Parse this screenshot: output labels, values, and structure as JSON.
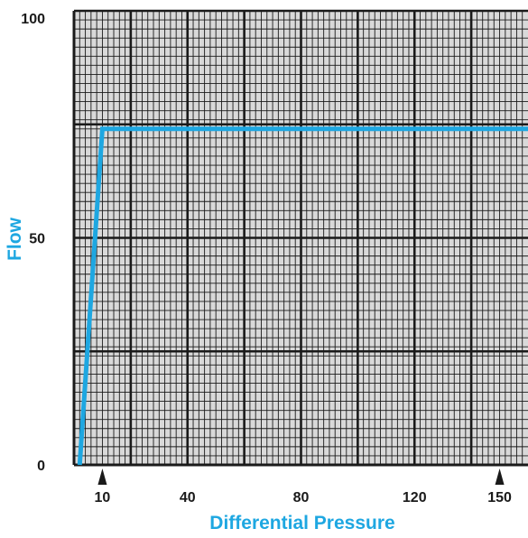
{
  "chart_data": {
    "type": "line",
    "title": "",
    "xlabel": "Differential Pressure",
    "ylabel": "Flow",
    "xlim": [
      0,
      160
    ],
    "ylim": [
      0,
      100
    ],
    "x_ticks": [
      10,
      40,
      80,
      120,
      150
    ],
    "x_tick_markers": [
      10,
      150
    ],
    "y_ticks": [
      0,
      50,
      100
    ],
    "grid": "major and minor",
    "series": [
      {
        "x": [
          2,
          10,
          160
        ],
        "y": [
          0,
          74,
          74
        ]
      }
    ]
  },
  "colors": {
    "series": "#1ea7e1",
    "axis_title": "#1ea7e1",
    "grid_background": "#d9d9d9",
    "minor_grid": "#1a1a1a",
    "major_grid": "#1a1a1a",
    "text": "#1a1a1a"
  }
}
